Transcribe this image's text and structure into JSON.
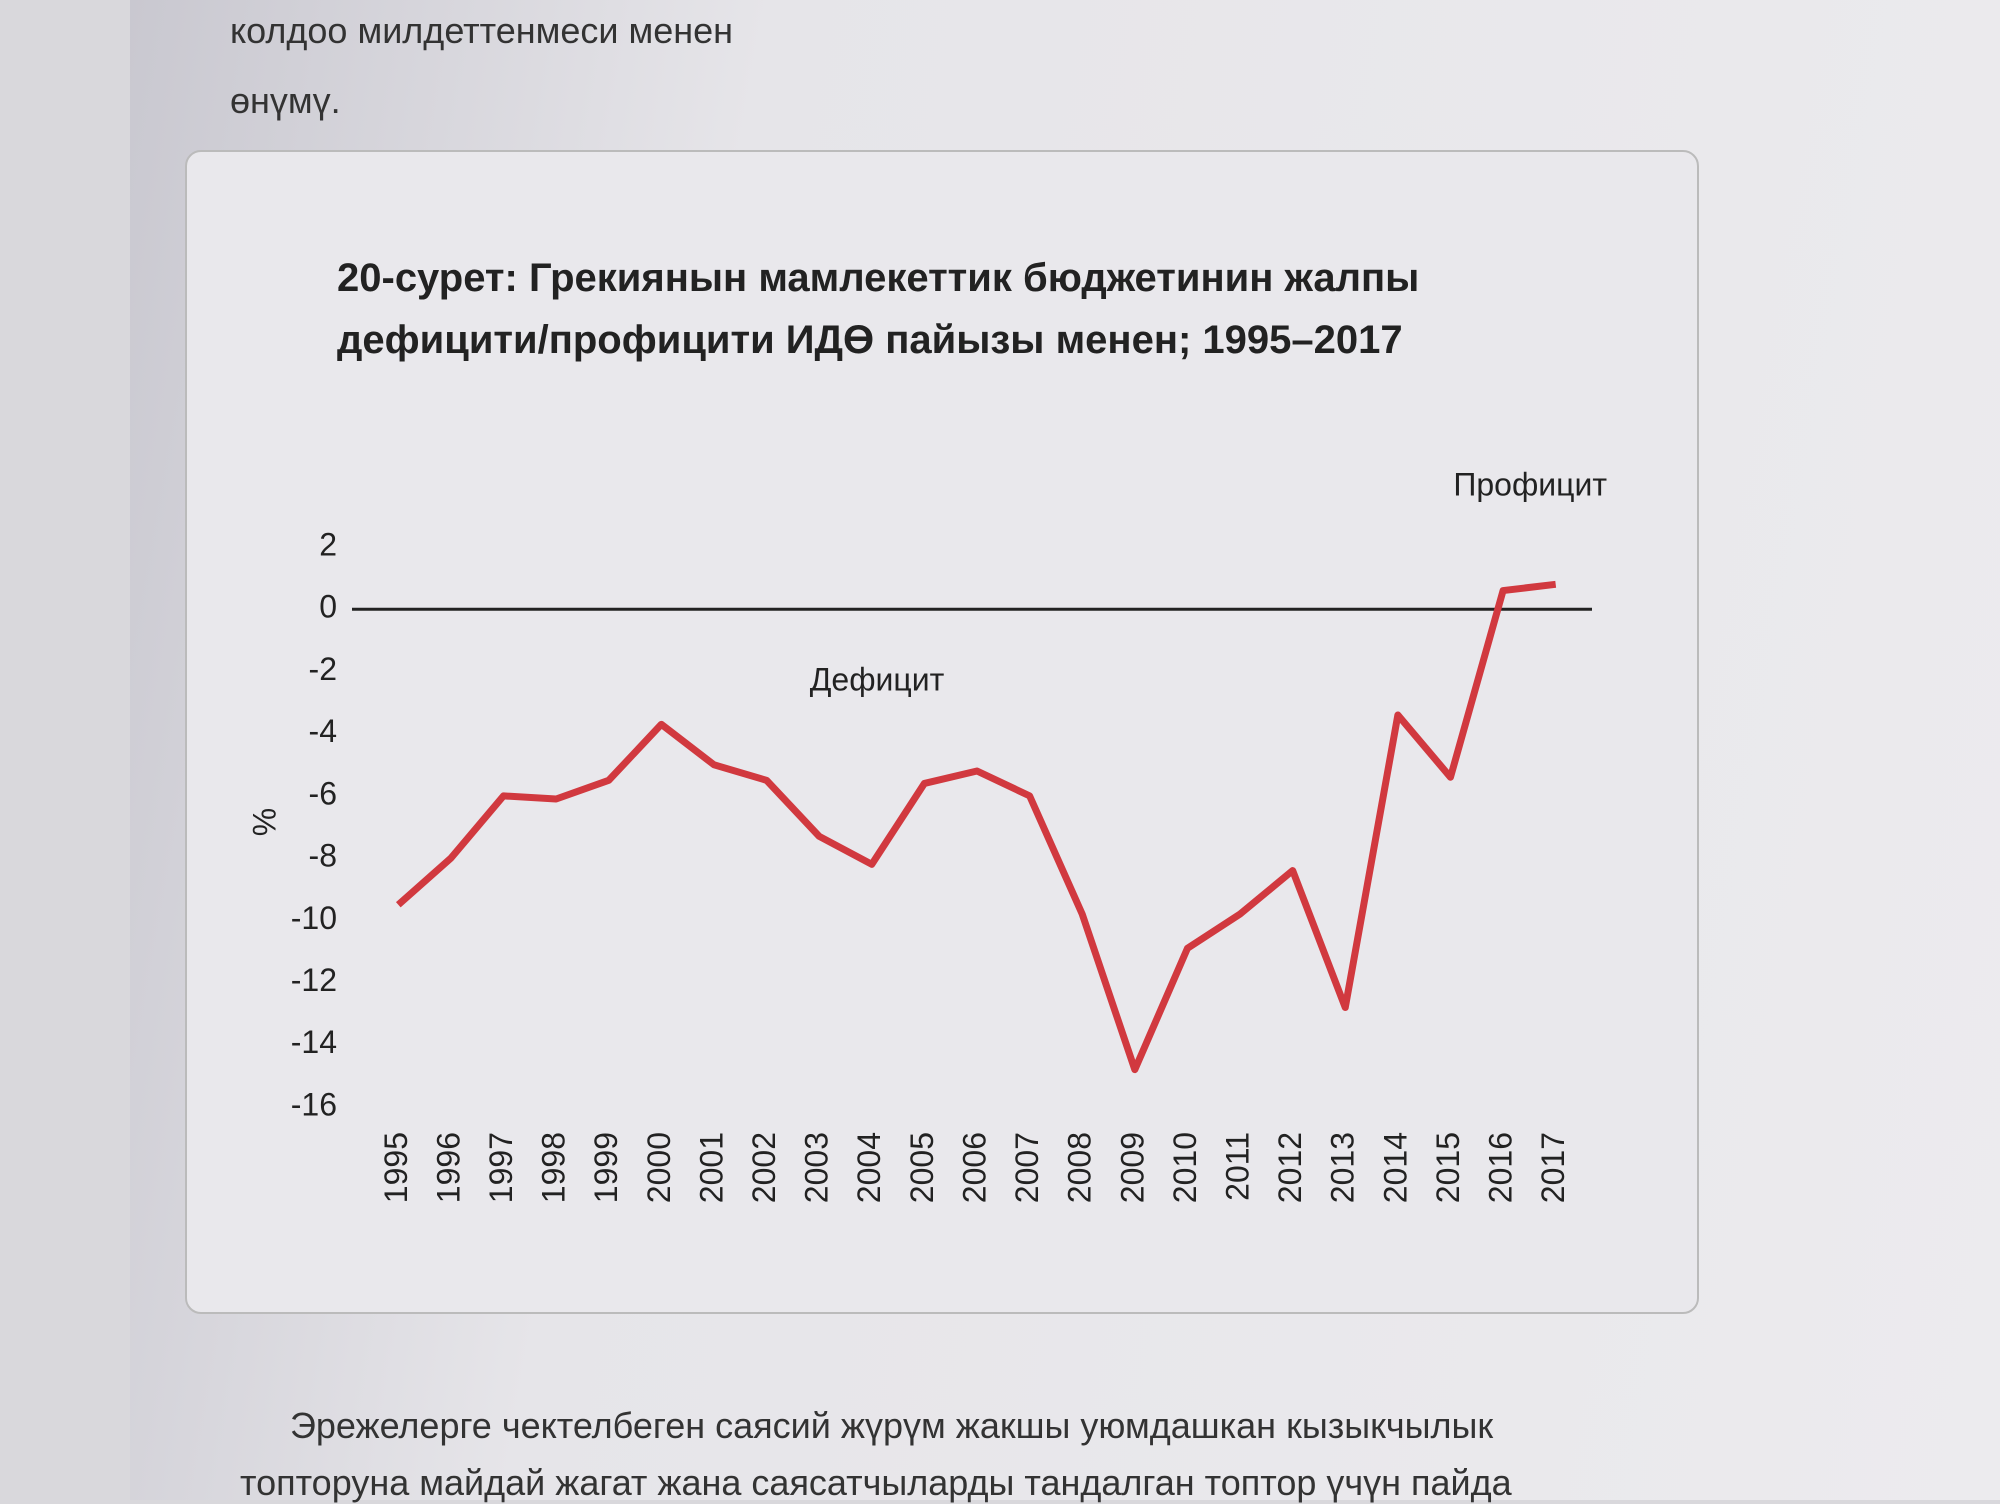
{
  "page_text": {
    "top_lines": [
      "колдоо милдеттенмеси менен",
      "өнүмү."
    ],
    "bottom_lines": [
      "Эрежелерге чектелбеген саясий жүрүм жакшы уюмдашкан кызыкчылык",
      "топторуна майдай жагат жана саясатчыларды тандалган топтор үчүн пайда"
    ]
  },
  "chart_data": {
    "type": "line",
    "title": "20-сурет: Грекиянын мамлекеттик бюджетинин жалпы дефицити/профицити ИДӨ пайызы менен; 1995–2017",
    "y_label": "%",
    "annotations": [
      "Профицит",
      "Дефицит"
    ],
    "categories": [
      "1995",
      "1996",
      "1997",
      "1998",
      "1999",
      "2000",
      "2001",
      "2002",
      "2003",
      "2004",
      "2005",
      "2006",
      "2007",
      "2008",
      "2009",
      "2010",
      "2011",
      "2012",
      "2013",
      "2014",
      "2015",
      "2016",
      "2017"
    ],
    "series": [
      {
        "color": "#d1393f",
        "values": [
          -9.5,
          -8.0,
          -6.0,
          -6.1,
          -5.5,
          -3.7,
          -5.0,
          -5.5,
          -7.3,
          -8.2,
          -5.6,
          -5.2,
          -6.0,
          -9.8,
          -14.8,
          -10.9,
          -9.8,
          -8.4,
          -12.8,
          -3.4,
          -5.4,
          0.6,
          0.8
        ]
      }
    ],
    "ylim": [
      -16,
      2
    ],
    "yticks": [
      2,
      0,
      -2,
      -4,
      -6,
      -8,
      -10,
      -12,
      -14,
      -16
    ],
    "zero_line": true
  }
}
